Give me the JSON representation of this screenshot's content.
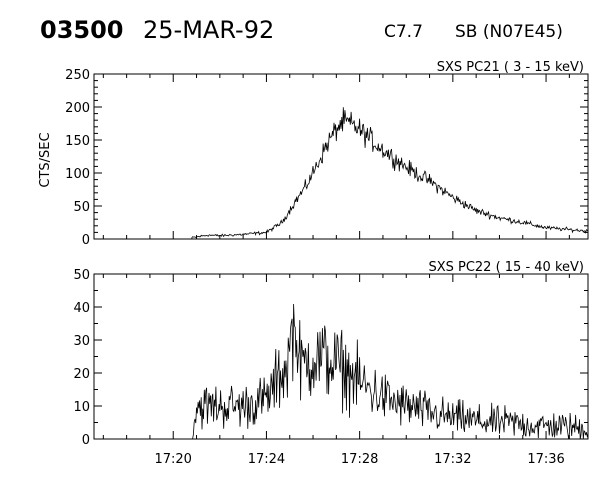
{
  "header": {
    "event_id": "03500",
    "date": "25-MAR-92",
    "goes_class": "C7.7",
    "source": "SB (N07E45)"
  },
  "y_axis_label": "CTS/SEC",
  "x_tick_labels": [
    "17:20",
    "17:24",
    "17:28",
    "17:32",
    "17:36"
  ],
  "chart_data": [
    {
      "type": "line",
      "title": "SXS PC21  (  3 - 15 keV)",
      "ylabel": "CTS/SEC",
      "xlim": [
        "17:16:36",
        "17:37:48"
      ],
      "ylim": [
        0,
        250
      ],
      "y_ticks": [
        0,
        50,
        100,
        150,
        200,
        250
      ],
      "x_ticks": [
        "17:20",
        "17:24",
        "17:28",
        "17:32",
        "17:36"
      ],
      "data_start": "17:20:48",
      "series": [
        {
          "x": [
            "17:20:48",
            "17:21:30",
            "17:22:00",
            "17:23:00",
            "17:24:00",
            "17:24:40",
            "17:25:12",
            "17:25:42",
            "17:26:10",
            "17:26:40",
            "17:27:05",
            "17:27:20",
            "17:27:45",
            "17:28:15",
            "17:28:50",
            "17:29:30",
            "17:30:10",
            "17:31:00",
            "17:32:00",
            "17:33:00",
            "17:34:00",
            "17:35:00",
            "17:36:00",
            "17:37:48"
          ],
          "values": [
            2,
            6,
            5,
            7,
            10,
            25,
            55,
            80,
            112,
            148,
            170,
            178,
            172,
            158,
            140,
            122,
            105,
            88,
            63,
            43,
            32,
            25,
            17,
            12
          ]
        }
      ]
    },
    {
      "type": "line",
      "title": "SXS PC22  ( 15 - 40 keV)",
      "ylabel": "",
      "xlim": [
        "17:16:36",
        "17:37:48"
      ],
      "ylim": [
        0,
        50
      ],
      "y_ticks": [
        0,
        10,
        20,
        30,
        40,
        50
      ],
      "x_ticks": [
        "17:20",
        "17:24",
        "17:28",
        "17:32",
        "17:36"
      ],
      "data_start": "17:20:48",
      "series": [
        {
          "x": [
            "17:20:48",
            "17:21:00",
            "17:22:00",
            "17:23:00",
            "17:24:00",
            "17:24:50",
            "17:25:10",
            "17:25:30",
            "17:26:00",
            "17:26:40",
            "17:27:20",
            "17:28:00",
            "17:28:40",
            "17:29:30",
            "17:30:30",
            "17:31:30",
            "17:32:30",
            "17:33:30",
            "17:34:30",
            "17:35:30",
            "17:36:30",
            "17:37:48"
          ],
          "values": [
            0,
            10,
            10,
            10,
            12,
            22,
            28,
            22,
            25,
            24,
            21,
            17,
            14,
            11,
            9,
            7,
            6,
            5,
            5,
            4,
            4,
            3
          ]
        }
      ]
    }
  ]
}
